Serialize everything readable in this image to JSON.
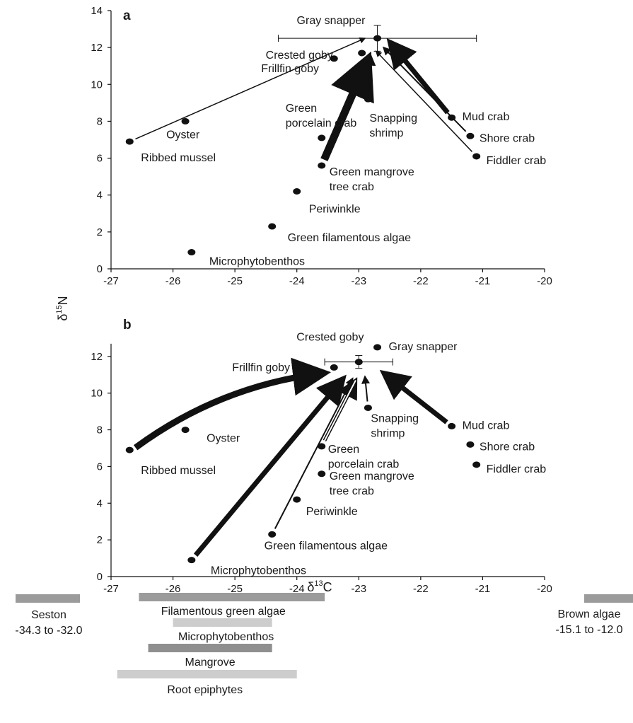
{
  "figure": {
    "y_axis_title": {
      "symbol": "δ",
      "superscript": "15",
      "element": "N"
    },
    "x_axis_title": {
      "symbol": "δ",
      "superscript": "13",
      "element": "C"
    }
  },
  "chart_data": [
    {
      "type": "scatter",
      "panel": "a",
      "xlim": [
        -27,
        -20
      ],
      "ylim": [
        0,
        14
      ],
      "x_ticks": [
        "-27",
        "-26",
        "-25",
        "-24",
        "-23",
        "-22",
        "-21",
        "-20"
      ],
      "y_ticks": [
        "0",
        "2",
        "4",
        "6",
        "8",
        "10",
        "12",
        "14"
      ],
      "grid": false,
      "series": [
        {
          "points": [
            {
              "label": "Gray snapper",
              "x": -22.7,
              "y": 12.5,
              "x_err": 1.6,
              "y_err": 0.7
            },
            {
              "label": "Crested goby",
              "x": -22.95,
              "y": 11.7
            },
            {
              "label": "Frillfin goby",
              "x": -23.4,
              "y": 11.4
            },
            {
              "label": "Snapping shrimp",
              "x": -22.85,
              "y": 9.2
            },
            {
              "label": "Green porcelain crab",
              "x": -23.6,
              "y": 7.1
            },
            {
              "label": "Mud crab",
              "x": -21.5,
              "y": 8.2
            },
            {
              "label": "Shore crab",
              "x": -21.2,
              "y": 7.2
            },
            {
              "label": "Fiddler crab",
              "x": -21.1,
              "y": 6.1
            },
            {
              "label": "Oyster",
              "x": -25.8,
              "y": 8.0
            },
            {
              "label": "Ribbed mussel",
              "x": -26.7,
              "y": 6.9
            },
            {
              "label": "Green mangrove tree crab",
              "x": -23.6,
              "y": 5.6
            },
            {
              "label": "Periwinkle",
              "x": -24.0,
              "y": 4.2
            },
            {
              "label": "Green filamentous algae",
              "x": -24.4,
              "y": 2.3
            },
            {
              "label": "Microphytobenthos",
              "x": -25.7,
              "y": 0.9
            }
          ]
        }
      ],
      "arrows": [
        {
          "from": "Ribbed mussel",
          "to": [
            -22.9,
            12.5
          ],
          "weight": 1.5
        },
        {
          "from": "Green mangrove tree crab",
          "to": [
            -22.85,
            11.4
          ],
          "weight": 11
        },
        {
          "from": "Snapping shrimp",
          "to": [
            -22.8,
            11.5
          ],
          "weight": 2.5
        },
        {
          "from": "Fiddler crab",
          "to": [
            -22.72,
            11.8
          ],
          "weight": 1.5
        },
        {
          "from": "Shore crab",
          "to": [
            -22.6,
            12.0
          ],
          "weight": 2
        },
        {
          "from": "Mud crab",
          "to": [
            -22.5,
            12.3
          ],
          "weight": 7
        }
      ]
    },
    {
      "type": "scatter",
      "panel": "b",
      "xlim": [
        -27,
        -20
      ],
      "ylim": [
        0,
        14
      ],
      "x_ticks": [
        "-27",
        "-26",
        "-25",
        "-24",
        "-23",
        "-22",
        "-21",
        "-20"
      ],
      "y_ticks": [
        "0",
        "2",
        "4",
        "6",
        "8",
        "10",
        "12"
      ],
      "grid": false,
      "series": [
        {
          "points": [
            {
              "label": "Gray snapper",
              "x": -22.7,
              "y": 12.5
            },
            {
              "label": "Crested goby",
              "x": -23.0,
              "y": 11.7,
              "x_err": 0.55,
              "y_err": 0.35
            },
            {
              "label": "Frillfin goby",
              "x": -23.4,
              "y": 11.4
            },
            {
              "label": "Snapping shrimp",
              "x": -22.85,
              "y": 9.2
            },
            {
              "label": "Green porcelain crab",
              "x": -23.6,
              "y": 7.1
            },
            {
              "label": "Mud crab",
              "x": -21.5,
              "y": 8.2
            },
            {
              "label": "Shore crab",
              "x": -21.2,
              "y": 7.2
            },
            {
              "label": "Fiddler crab",
              "x": -21.1,
              "y": 6.1
            },
            {
              "label": "Oyster",
              "x": -25.8,
              "y": 8.0
            },
            {
              "label": "Ribbed mussel",
              "x": -26.7,
              "y": 6.9
            },
            {
              "label": "Green mangrove tree crab",
              "x": -23.6,
              "y": 5.6
            },
            {
              "label": "Periwinkle",
              "x": -24.0,
              "y": 4.2
            },
            {
              "label": "Green filamentous algae",
              "x": -24.4,
              "y": 2.3
            },
            {
              "label": "Microphytobenthos",
              "x": -25.7,
              "y": 0.9
            }
          ]
        }
      ],
      "arrows": [
        {
          "from": "Ribbed mussel",
          "to": [
            -23.55,
            11.1
          ],
          "weight": 9,
          "curved": true
        },
        {
          "from": "Microphytobenthos",
          "to": [
            -23.25,
            10.8
          ],
          "weight": 7
        },
        {
          "from": "Green filamentous algae",
          "to": [
            -23.1,
            10.8
          ],
          "weight": 2
        },
        {
          "from": "Green porcelain crab",
          "to": [
            -23.05,
            10.7
          ],
          "weight": 3,
          "outline": true
        },
        {
          "from": "Snapping shrimp",
          "to": [
            -22.9,
            10.9
          ],
          "weight": 2
        },
        {
          "from": "Mud crab",
          "to": [
            -22.6,
            11.1
          ],
          "weight": 7
        }
      ]
    }
  ],
  "source_ranges": {
    "x_ticks": [
      "-27",
      "-26",
      "-25",
      "-24",
      "-23",
      "-22",
      "-21",
      "-20"
    ],
    "bars": [
      {
        "name": "Seston",
        "range_text": "-34.3 to -32.0",
        "color": "#9b9b9b"
      },
      {
        "name": "Filamentous green algae",
        "range": [
          -26.55,
          -23.55
        ],
        "color": "#9b9b9b"
      },
      {
        "name": "Microphytobenthos",
        "range": [
          -26.0,
          -24.4
        ],
        "color": "#cdcdcd"
      },
      {
        "name": "Mangrove",
        "range": [
          -26.4,
          -24.4
        ],
        "color": "#8f8f8f"
      },
      {
        "name": "Root epiphytes",
        "range": [
          -26.9,
          -24.0
        ],
        "color": "#cdcdcd"
      },
      {
        "name": "Brown algae",
        "range_text": "-15.1 to -12.0",
        "color": "#9b9b9b"
      }
    ]
  }
}
